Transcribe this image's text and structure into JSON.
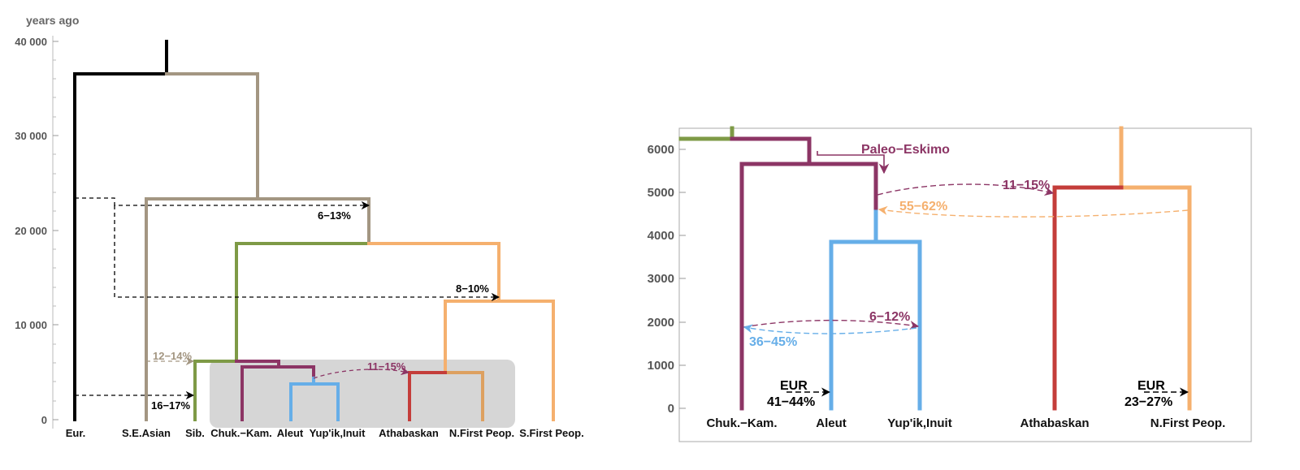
{
  "colors": {
    "eur": "#000000",
    "seasian": "#a39682",
    "sib": "#7e9a46",
    "chuk": "#8c3565",
    "aleut": "#66aee8",
    "athabaskan": "#c43d3a",
    "nfirst": "#dda060",
    "sfirst": "#f5b06e",
    "paleo_eskimo": "#8c3565"
  },
  "left_panel": {
    "unit_label": "years ago",
    "y_ticks": [
      "0",
      "10 000",
      "20 000",
      "30 000",
      "40 000"
    ],
    "y_tick_values": [
      0,
      10000,
      20000,
      30000,
      40000
    ],
    "leaves": [
      "Eur.",
      "S.E.Asian",
      "Sib.",
      "Chuk.−Kam.",
      "Aleut",
      "Yup'ik,Inuit",
      "Athabaskan",
      "N.First Peop.",
      "S.First Peop."
    ],
    "admixture_labels": {
      "a": "6−13%",
      "b": "8−10%",
      "c": "12−14%",
      "d": "16−17%",
      "e": "11−15%"
    }
  },
  "right_panel": {
    "y_ticks": [
      "0",
      "1000",
      "2000",
      "3000",
      "4000",
      "5000",
      "6000"
    ],
    "y_tick_values": [
      0,
      1000,
      2000,
      3000,
      4000,
      5000,
      6000
    ],
    "leaves": [
      "Chuk.−Kam.",
      "Aleut",
      "Yup'ik,Inuit",
      "Athabaskan",
      "N.First Peop."
    ],
    "paleo_label": "Paleo−Eskimo",
    "admixture_labels": {
      "a": "11−15%",
      "b": "55−62%",
      "c": "6−12%",
      "d": "36−45%",
      "eur_left": "EUR",
      "eur_left_pct": "41−44%",
      "eur_right": "EUR",
      "eur_right_pct": "23−27%"
    }
  }
}
